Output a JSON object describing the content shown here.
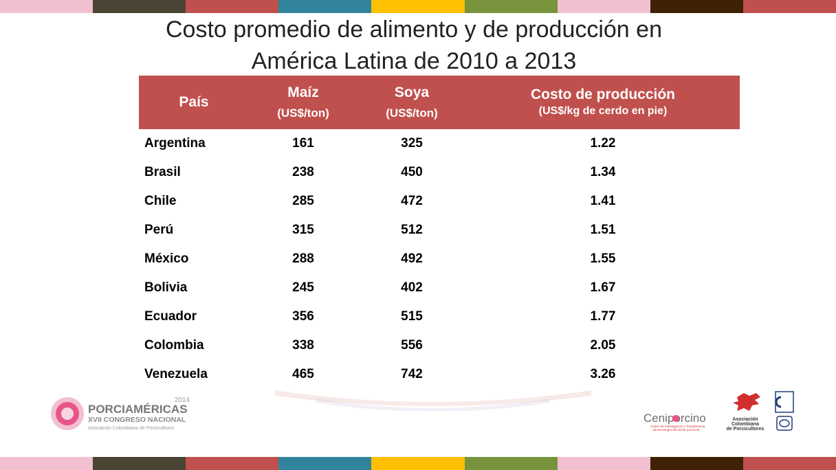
{
  "stripes": [
    "#f2bfd0",
    "#4a4434",
    "#c0504d",
    "#31849b",
    "#ffc000",
    "#77933c",
    "#f2bfd0",
    "#3f2205",
    "#c0504d"
  ],
  "title_lines": [
    "Costo promedio de alimento y de producción en",
    "América Latina de 2010 a 2013"
  ],
  "table": {
    "header": {
      "country": "País",
      "maiz": "Maíz",
      "maiz_unit": "(US$/ton)",
      "soya": "Soya",
      "soya_unit": "(US$/ton)",
      "cost": "Costo de producción",
      "cost_unit": "(US$/kg de cerdo en pie)"
    },
    "rows": [
      {
        "country": "Argentina",
        "maiz": "161",
        "soya": "325",
        "cost": "1.22"
      },
      {
        "country": "Brasil",
        "maiz": "238",
        "soya": "450",
        "cost": "1.34"
      },
      {
        "country": "Chile",
        "maiz": "285",
        "soya": "472",
        "cost": "1.41"
      },
      {
        "country": "Perú",
        "maiz": "315",
        "soya": "512",
        "cost": "1.51"
      },
      {
        "country": "México",
        "maiz": "288",
        "soya": "492",
        "cost": "1.55"
      },
      {
        "country": "Bolivia",
        "maiz": "245",
        "soya": "402",
        "cost": "1.67"
      },
      {
        "country": "Ecuador",
        "maiz": "356",
        "soya": "515",
        "cost": "1.77"
      },
      {
        "country": "Colombia",
        "maiz": "338",
        "soya": "556",
        "cost": "2.05"
      },
      {
        "country": "Venezuela",
        "maiz": "465",
        "soya": "742",
        "cost": "3.26"
      }
    ]
  },
  "logos": {
    "porciamericas": {
      "year": "2014",
      "name": "PORCIAMÉRICAS",
      "subtitle": "XVII CONGRESO NACIONAL",
      "org": "Asociación Colombiana de Porcicultores"
    },
    "ceniporcino": {
      "name": "Ceniporcino",
      "tagline1": "Centro de Investigación y Transferencia",
      "tagline2": "de tecnología del sector porcícola"
    },
    "asociacion": {
      "line1": "Asociación",
      "line2": "Colombiana",
      "line3": "de Porcicultores"
    }
  },
  "colors": {
    "header_bg": "#c0504d",
    "header_text": "#ffffff",
    "logo_pink": "#e8558a",
    "logo_red": "#d12e2e"
  }
}
